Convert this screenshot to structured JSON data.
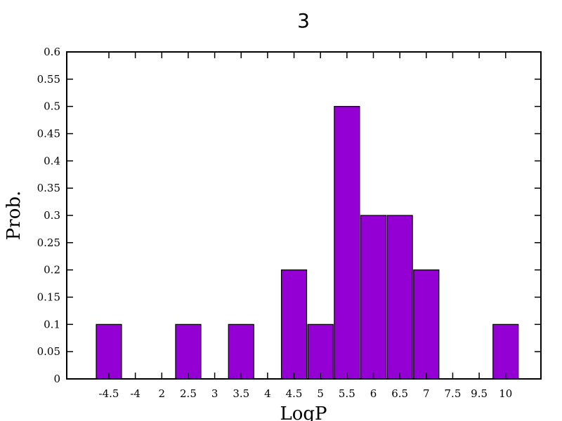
{
  "chart_data": {
    "type": "bar",
    "title": "3",
    "xlabel": "LogP",
    "ylabel": "Prob.",
    "categories": [
      "-4.5",
      "-4",
      "2",
      "2.5",
      "3",
      "3.5",
      "4",
      "4.5",
      "5",
      "5.5",
      "6",
      "6.5",
      "7",
      "7.5",
      "9.5",
      "10"
    ],
    "values": [
      0.1,
      0,
      0,
      0.1,
      0,
      0.1,
      0,
      0.2,
      0.1,
      0.5,
      0.3,
      0.3,
      0.2,
      0,
      0,
      0.1
    ],
    "ylim": [
      0,
      0.6
    ],
    "yticks": [
      "0",
      "0.05",
      "0.1",
      "0.15",
      "0.2",
      "0.25",
      "0.3",
      "0.35",
      "0.4",
      "0.45",
      "0.5",
      "0.55",
      "0.6"
    ],
    "bar_color": "#9400d3",
    "grid": false
  }
}
